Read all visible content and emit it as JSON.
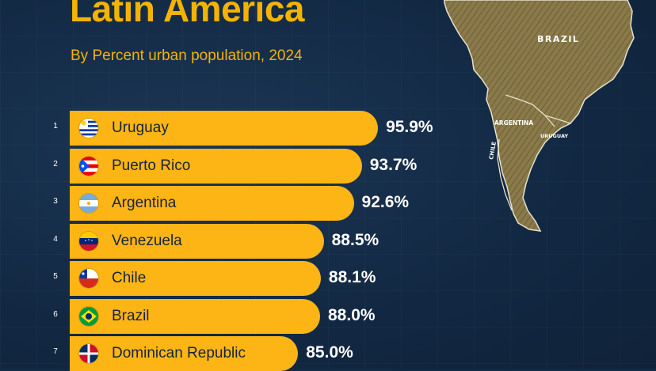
{
  "header": {
    "title": "Latin America",
    "subtitle": "By Percent urban population, 2024"
  },
  "map": {
    "labels": [
      "BRAZIL",
      "ARGENTINA",
      "CHILE",
      "URUGUAY"
    ],
    "land_color": "#8a7a4a",
    "outline_color": "#e8e2cc"
  },
  "colors": {
    "background": "#132a44",
    "accent": "#f5b301",
    "bar": "#fdb515",
    "value_text": "#ffffff"
  },
  "chart_data": {
    "type": "bar",
    "orientation": "horizontal",
    "title": "Latin America",
    "subtitle": "By Percent urban population, 2024",
    "xlim": [
      0,
      100
    ],
    "rows": [
      {
        "rank": "1",
        "country": "Uruguay",
        "value": 95.9,
        "label": "95.9%",
        "flag": "uruguay-flag-icon"
      },
      {
        "rank": "2",
        "country": "Puerto Rico",
        "value": 93.7,
        "label": "93.7%",
        "flag": "puerto-rico-flag-icon"
      },
      {
        "rank": "3",
        "country": "Argentina",
        "value": 92.6,
        "label": "92.6%",
        "flag": "argentina-flag-icon"
      },
      {
        "rank": "4",
        "country": "Venezuela",
        "value": 88.5,
        "label": "88.5%",
        "flag": "venezuela-flag-icon"
      },
      {
        "rank": "5",
        "country": "Chile",
        "value": 88.1,
        "label": "88.1%",
        "flag": "chile-flag-icon"
      },
      {
        "rank": "6",
        "country": "Brazil",
        "value": 88.0,
        "label": "88.0%",
        "flag": "brazil-flag-icon"
      },
      {
        "rank": "7",
        "country": "Dominican Republic",
        "value": 85.0,
        "label": "85.0%",
        "flag": "dominican-republic-flag-icon"
      }
    ]
  }
}
